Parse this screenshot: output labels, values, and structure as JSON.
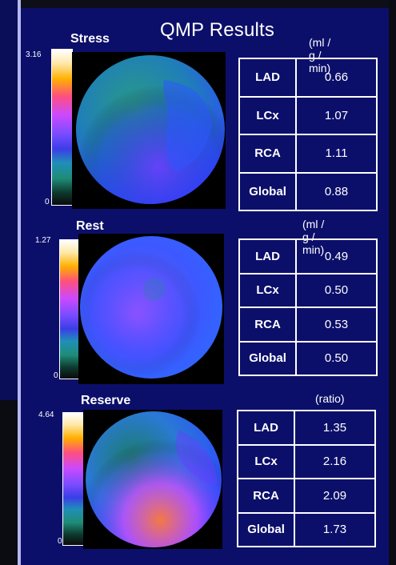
{
  "title": "QMP Results",
  "panels": [
    {
      "name": "Stress",
      "units": "(ml / g / min)",
      "scale_max": "3.16",
      "scale_min": "0",
      "rows": [
        {
          "k": "LAD",
          "v": "0.66"
        },
        {
          "k": "LCx",
          "v": "1.07"
        },
        {
          "k": "RCA",
          "v": "1.11"
        },
        {
          "k": "Global",
          "v": "0.88"
        }
      ]
    },
    {
      "name": "Rest",
      "units": "(ml / g / min)",
      "scale_max": "1.27",
      "scale_min": "0",
      "rows": [
        {
          "k": "LAD",
          "v": "0.49"
        },
        {
          "k": "LCx",
          "v": "0.50"
        },
        {
          "k": "RCA",
          "v": "0.53"
        },
        {
          "k": "Global",
          "v": "0.50"
        }
      ]
    },
    {
      "name": "Reserve",
      "units": "(ratio)",
      "scale_max": "4.64",
      "scale_min": "0",
      "rows": [
        {
          "k": "LAD",
          "v": "1.35"
        },
        {
          "k": "LCx",
          "v": "2.16"
        },
        {
          "k": "RCA",
          "v": "2.09"
        },
        {
          "k": "Global",
          "v": "1.73"
        }
      ]
    }
  ]
}
